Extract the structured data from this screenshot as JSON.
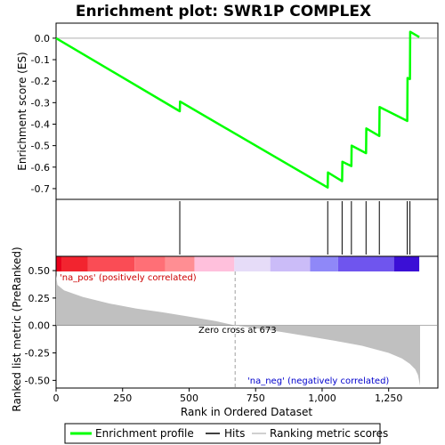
{
  "chart_data": {
    "type": "line",
    "title": "Enrichment plot: SWR1P COMPLEX",
    "xlabel": "Rank in Ordered Dataset",
    "es_panel": {
      "ylabel": "Enrichment score (ES)",
      "ylim": [
        -0.75,
        0.07
      ],
      "yticks": [
        0.0,
        -0.1,
        -0.2,
        -0.3,
        -0.4,
        -0.5,
        -0.6,
        -0.7
      ],
      "ytick_labels": [
        "0.0",
        "-0.1",
        "-0.2",
        "-0.3",
        "-0.4",
        "-0.5",
        "-0.6",
        "-0.7"
      ],
      "series": [
        {
          "name": "Enrichment profile",
          "color": "#00ff00",
          "x": [
            0,
            465,
            466,
            1021,
            1022,
            1075,
            1076,
            1110,
            1111,
            1165,
            1166,
            1215,
            1216,
            1320,
            1321,
            1330,
            1331,
            1365
          ],
          "y": [
            0.0,
            -0.34,
            -0.295,
            -0.695,
            -0.625,
            -0.665,
            -0.575,
            -0.595,
            -0.5,
            -0.535,
            -0.42,
            -0.455,
            -0.32,
            -0.385,
            -0.185,
            -0.19,
            0.03,
            0.005
          ]
        }
      ]
    },
    "hits": {
      "name": "Hits",
      "color": "#000000",
      "positions": [
        465,
        1021,
        1075,
        1110,
        1165,
        1215,
        1320,
        1330
      ]
    },
    "rank_panel": {
      "ylabel": "Ranked list metric (PreRanked)",
      "ylim": [
        -0.57,
        0.63
      ],
      "yticks": [
        0.5,
        0.25,
        0.0,
        -0.25,
        -0.5
      ],
      "ytick_labels": [
        "0.50",
        "0.25",
        "0.00",
        "-0.25",
        "-0.50"
      ],
      "series_name": "Ranking metric scores",
      "color": "#c0c0c0",
      "x": [
        0,
        5,
        30,
        100,
        200,
        300,
        400,
        500,
        600,
        673,
        750,
        850,
        950,
        1050,
        1150,
        1250,
        1300,
        1330,
        1350,
        1360,
        1368
      ],
      "y": [
        0.46,
        0.37,
        0.32,
        0.26,
        0.2,
        0.155,
        0.12,
        0.08,
        0.04,
        0.0,
        -0.025,
        -0.06,
        -0.1,
        -0.14,
        -0.185,
        -0.25,
        -0.3,
        -0.35,
        -0.4,
        -0.45,
        -0.55
      ]
    },
    "xlim": [
      0,
      1435
    ],
    "xticks": [
      0,
      250,
      500,
      750,
      1000,
      1250
    ],
    "xtick_labels": [
      "0",
      "250",
      "500",
      "750",
      "1,000",
      "1,250"
    ],
    "zero_cross": {
      "rank": 673,
      "label": "Zero cross at 673"
    },
    "pos_label": "'na_pos' (positively correlated)",
    "neg_label": "'na_neg' (negatively correlated)",
    "pos_color": "#cc0000",
    "neg_color": "#0000cc",
    "color_bar": [
      {
        "start": 0,
        "end": 20,
        "color": "#e8001b"
      },
      {
        "start": 20,
        "end": 120,
        "color": "#f2242f"
      },
      {
        "start": 120,
        "end": 295,
        "color": "#fa4c55"
      },
      {
        "start": 295,
        "end": 410,
        "color": "#ff6f76"
      },
      {
        "start": 410,
        "end": 520,
        "color": "#ff8e93"
      },
      {
        "start": 520,
        "end": 670,
        "color": "#ffc0dc"
      },
      {
        "start": 670,
        "end": 805,
        "color": "#e6dcf8"
      },
      {
        "start": 805,
        "end": 955,
        "color": "#cbbcf8"
      },
      {
        "start": 955,
        "end": 1060,
        "color": "#8f88f8"
      },
      {
        "start": 1060,
        "end": 1270,
        "color": "#6f55ee"
      },
      {
        "start": 1270,
        "end": 1365,
        "color": "#3b0fd6"
      }
    ],
    "legend": {
      "placement": "bottom",
      "items": [
        {
          "label": "Enrichment profile",
          "color": "#00ff00"
        },
        {
          "label": "Hits",
          "color": "#000000"
        },
        {
          "label": "Ranking metric scores",
          "color": "#c0c0c0"
        }
      ]
    }
  }
}
